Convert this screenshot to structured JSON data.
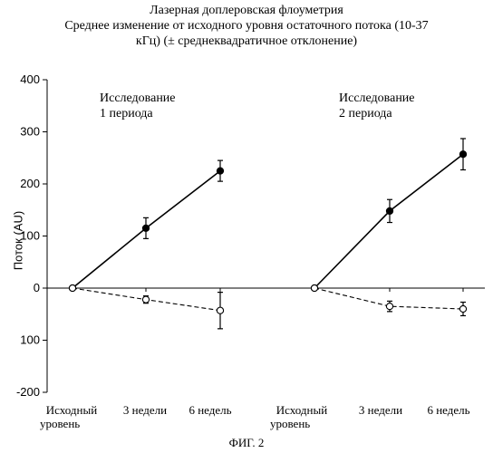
{
  "titles": {
    "line1": "Лазерная доплеровская флоуметрия",
    "line2": "Среднее изменение от исходного уровня остаточного потока (10-37",
    "line3": "кГц) (± среднеквадратичное отклонение)"
  },
  "caption": "ФИГ. 2",
  "annotations": {
    "period1_line1": "Исследование",
    "period1_line2": "1 периода",
    "period2_line1": "Исследование",
    "period2_line2": "2 периода"
  },
  "x_ticks": [
    {
      "l1": "Исходный",
      "l2": "уровень"
    },
    {
      "l1": "3 недели",
      "l2": ""
    },
    {
      "l1": "6 недель",
      "l2": ""
    },
    {
      "l1": "Исходный",
      "l2": "уровень"
    },
    {
      "l1": "3 недели",
      "l2": ""
    },
    {
      "l1": "6 недель",
      "l2": ""
    }
  ],
  "chart_data": {
    "type": "line",
    "ylabel": "Поток (AU)",
    "ylim": [
      -200,
      400
    ],
    "yticks": [
      {
        "value": 400,
        "label": "400"
      },
      {
        "value": 300,
        "label": "300"
      },
      {
        "value": 200,
        "label": "200"
      },
      {
        "value": 100,
        "label": "100"
      },
      {
        "value": 0,
        "label": "0"
      },
      {
        "value": -100,
        "label": "100"
      },
      {
        "value": -200,
        "label": "-200"
      }
    ],
    "grid": false,
    "legend": "none",
    "x_positions": [
      1,
      2,
      3,
      4,
      5,
      6
    ],
    "series": [
      {
        "style": "solid-filled",
        "segment": 1,
        "x": [
          1,
          2,
          3
        ],
        "y": [
          0,
          115,
          225
        ],
        "err": [
          0,
          20,
          20
        ]
      },
      {
        "style": "dashed-open",
        "segment": 1,
        "x": [
          1,
          2,
          3
        ],
        "y": [
          0,
          -22,
          -43
        ],
        "err": [
          0,
          7,
          35
        ]
      },
      {
        "style": "solid-filled",
        "segment": 2,
        "x": [
          4,
          5,
          6
        ],
        "y": [
          0,
          148,
          257
        ],
        "err": [
          0,
          22,
          30
        ]
      },
      {
        "style": "dashed-open",
        "segment": 2,
        "x": [
          4,
          5,
          6
        ],
        "y": [
          0,
          -35,
          -40
        ],
        "err": [
          0,
          10,
          13
        ]
      }
    ]
  }
}
